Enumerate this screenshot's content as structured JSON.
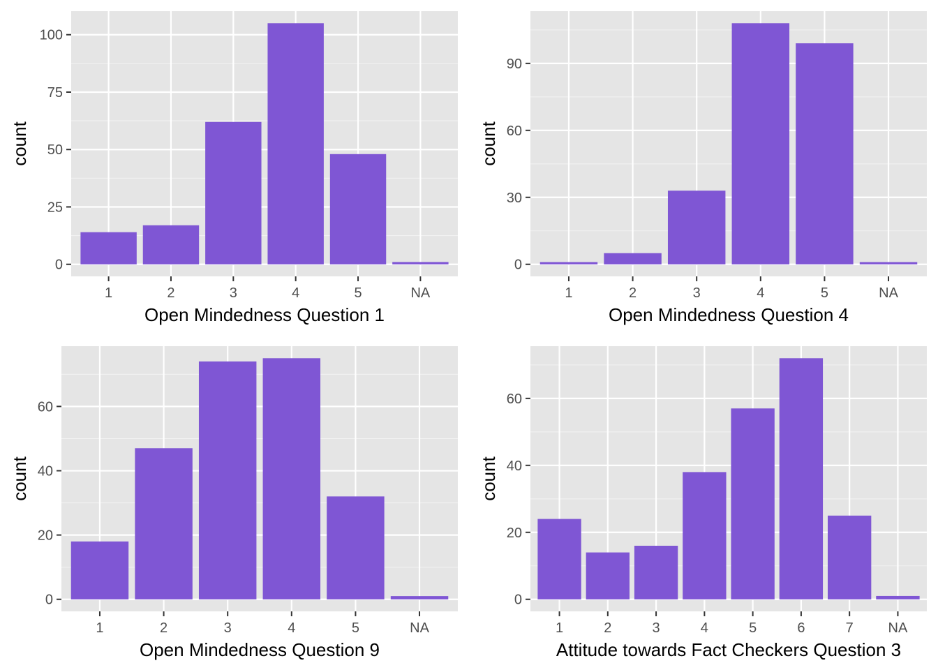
{
  "colors": {
    "panel_background": "#e5e5e5",
    "grid_major": "#ffffff",
    "grid_minor": "#f2f2f2",
    "bar_fill": "#7f56d4",
    "tick_text": "#4d4d4d",
    "tick_mark": "#333333",
    "axis_title": "#000000"
  },
  "chart_data": [
    {
      "type": "bar",
      "categories": [
        "1",
        "2",
        "3",
        "4",
        "5",
        "NA"
      ],
      "values": [
        14,
        17,
        62,
        105,
        48,
        1
      ],
      "xlabel": "Open Mindedness Question 1",
      "ylabel": "count",
      "ylim": [
        -5.25,
        110.25
      ],
      "yticks": [
        0,
        25,
        50,
        75,
        100
      ],
      "grid": true,
      "legend": "none"
    },
    {
      "type": "bar",
      "categories": [
        "1",
        "2",
        "3",
        "4",
        "5",
        "NA"
      ],
      "values": [
        1,
        5,
        33,
        108,
        99,
        1
      ],
      "xlabel": "Open Mindedness Question 4",
      "ylabel": "count",
      "ylim": [
        -5.4,
        113.4
      ],
      "yticks": [
        0,
        30,
        60,
        90
      ],
      "grid": true,
      "legend": "none"
    },
    {
      "type": "bar",
      "categories": [
        "1",
        "2",
        "3",
        "4",
        "5",
        "NA"
      ],
      "values": [
        18,
        47,
        74,
        75,
        32,
        1
      ],
      "xlabel": "Open Mindedness Question 9",
      "ylabel": "count",
      "ylim": [
        -3.75,
        78.75
      ],
      "yticks": [
        0,
        20,
        40,
        60
      ],
      "grid": true,
      "legend": "none"
    },
    {
      "type": "bar",
      "categories": [
        "1",
        "2",
        "3",
        "4",
        "5",
        "6",
        "7",
        "NA"
      ],
      "values": [
        24,
        14,
        16,
        38,
        57,
        72,
        25,
        1
      ],
      "xlabel": "Attitude towards Fact Checkers Question 3",
      "ylabel": "count",
      "ylim": [
        -3.6,
        75.6
      ],
      "yticks": [
        0,
        20,
        40,
        60
      ],
      "grid": true,
      "legend": "none"
    }
  ]
}
